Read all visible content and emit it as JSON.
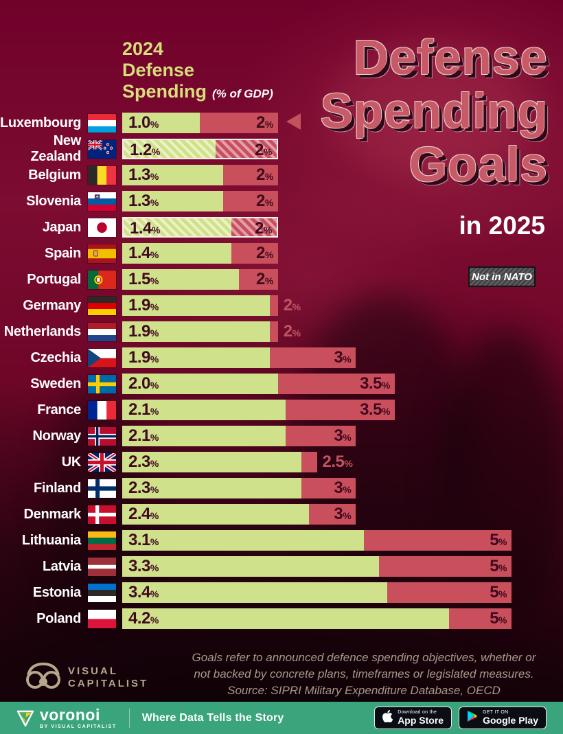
{
  "poster": {
    "axis_header": {
      "line1": "2024",
      "line2": "Defense",
      "line3": "Spending",
      "unit_note": "(% of GDP)"
    },
    "title": {
      "line1": "Defense",
      "line2": "Spending",
      "line3": "Goals",
      "subtitle": "in 2025"
    },
    "legend": {
      "not_in_nato": "Not in NATO"
    },
    "colors": {
      "background": "#70012a",
      "spending_bar": "#cfe18b",
      "goal_bar": "#c94f5c",
      "bar_value_text": "#40091d",
      "outside_label": "#c05562",
      "title": "#c75a66",
      "axis_header_text": "#d8de7c",
      "footer_bar": "#3aa47c"
    }
  },
  "chart_data": {
    "type": "bar",
    "orientation": "horizontal",
    "title": "Defense Spending Goals in 2025",
    "xlabel": "% of GDP",
    "x_range": [
      0,
      5
    ],
    "percent_sign": "%",
    "legend": [
      "2024 Defense Spending (% of GDP)",
      "Goal (hatched = Not in NATO)"
    ],
    "series": [
      {
        "country": "Luxembourg",
        "flag": "lu",
        "spending": 1.0,
        "spending_label": "1.0",
        "goal": 2,
        "goal_label": "2",
        "not_in_nato": false
      },
      {
        "country": "New Zealand",
        "flag": "nz",
        "spending": 1.2,
        "spending_label": "1.2",
        "goal": 2,
        "goal_label": "2",
        "not_in_nato": true
      },
      {
        "country": "Belgium",
        "flag": "be",
        "spending": 1.3,
        "spending_label": "1.3",
        "goal": 2,
        "goal_label": "2",
        "not_in_nato": false
      },
      {
        "country": "Slovenia",
        "flag": "si",
        "spending": 1.3,
        "spending_label": "1.3",
        "goal": 2,
        "goal_label": "2",
        "not_in_nato": false
      },
      {
        "country": "Japan",
        "flag": "jp",
        "spending": 1.4,
        "spending_label": "1.4",
        "goal": 2,
        "goal_label": "2",
        "not_in_nato": true
      },
      {
        "country": "Spain",
        "flag": "es",
        "spending": 1.4,
        "spending_label": "1.4",
        "goal": 2,
        "goal_label": "2",
        "not_in_nato": false
      },
      {
        "country": "Portugal",
        "flag": "pt",
        "spending": 1.5,
        "spending_label": "1.5",
        "goal": 2,
        "goal_label": "2",
        "not_in_nato": false
      },
      {
        "country": "Germany",
        "flag": "de",
        "spending": 1.9,
        "spending_label": "1.9",
        "goal": 2,
        "goal_label": "2",
        "not_in_nato": false
      },
      {
        "country": "Netherlands",
        "flag": "nl",
        "spending": 1.9,
        "spending_label": "1.9",
        "goal": 2,
        "goal_label": "2",
        "not_in_nato": false
      },
      {
        "country": "Czechia",
        "flag": "cz",
        "spending": 1.9,
        "spending_label": "1.9",
        "goal": 3,
        "goal_label": "3",
        "not_in_nato": false
      },
      {
        "country": "Sweden",
        "flag": "se",
        "spending": 2.0,
        "spending_label": "2.0",
        "goal": 3.5,
        "goal_label": "3.5",
        "not_in_nato": false
      },
      {
        "country": "France",
        "flag": "fr",
        "spending": 2.1,
        "spending_label": "2.1",
        "goal": 3.5,
        "goal_label": "3.5",
        "not_in_nato": false
      },
      {
        "country": "Norway",
        "flag": "no",
        "spending": 2.1,
        "spending_label": "2.1",
        "goal": 3,
        "goal_label": "3",
        "not_in_nato": false
      },
      {
        "country": "UK",
        "flag": "uk",
        "spending": 2.3,
        "spending_label": "2.3",
        "goal": 2.5,
        "goal_label": "2.5",
        "not_in_nato": false
      },
      {
        "country": "Finland",
        "flag": "fi",
        "spending": 2.3,
        "spending_label": "2.3",
        "goal": 3,
        "goal_label": "3",
        "not_in_nato": false
      },
      {
        "country": "Denmark",
        "flag": "dk",
        "spending": 2.4,
        "spending_label": "2.4",
        "goal": 3,
        "goal_label": "3",
        "not_in_nato": false
      },
      {
        "country": "Lithuania",
        "flag": "lt",
        "spending": 3.1,
        "spending_label": "3.1",
        "goal": 5,
        "goal_label": "5",
        "not_in_nato": false
      },
      {
        "country": "Latvia",
        "flag": "lv",
        "spending": 3.3,
        "spending_label": "3.3",
        "goal": 5,
        "goal_label": "5",
        "not_in_nato": false
      },
      {
        "country": "Estonia",
        "flag": "ee",
        "spending": 3.4,
        "spending_label": "3.4",
        "goal": 5,
        "goal_label": "5",
        "not_in_nato": false
      },
      {
        "country": "Poland",
        "flag": "pl",
        "spending": 4.2,
        "spending_label": "4.2",
        "goal": 5,
        "goal_label": "5",
        "not_in_nato": false
      }
    ]
  },
  "footnote": {
    "lines": [
      "Goals refer to announced defence spending objectives, whether or",
      "not backed by concrete plans, timeframes or legislated measures.",
      "Source: SIPRI Military Expenditure Database, OECD"
    ]
  },
  "branding": {
    "visual_capitalist": {
      "line1": "VISUAL",
      "line2": "CAPITALIST"
    },
    "voronoi": {
      "name": "voronoi",
      "byline": "BY VISUAL CAPITALIST",
      "tagline": "Where Data Tells the Story"
    },
    "badges": {
      "appstore_top": "Download on the",
      "appstore_bottom": "App Store",
      "gplay_top": "GET IT ON",
      "gplay_bottom": "Google Play"
    }
  }
}
